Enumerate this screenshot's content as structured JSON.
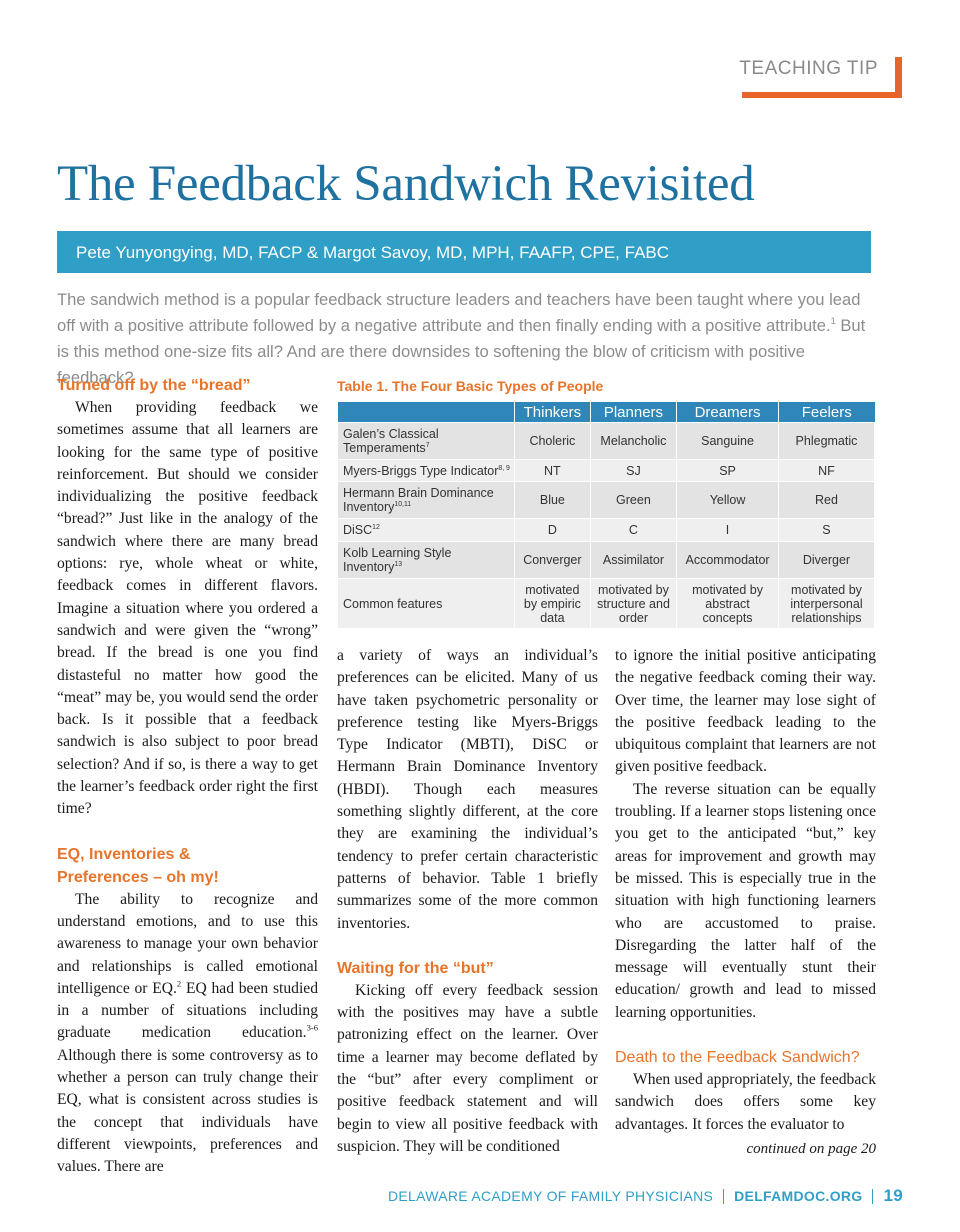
{
  "header": {
    "section": "TEACHING TIP"
  },
  "title": "The Feedback Sandwich Revisited",
  "authors": "Pete Yunyongying, MD, FACP & Margot Savoy, MD, MPH, FAAFP, CPE, FABC",
  "intro": [
    "The sandwich method is a popular feedback structure leaders and teachers have been taught where you lead off with a positive attribute followed by a negative attribute and then finally ending with a positive attribute.",
    "1",
    " But is this method one-size fits all? And are there downsides to softening the blow of criticism with positive feedback?"
  ],
  "left_column": {
    "heading1": "Turned off by the “bread”",
    "paragraph1": "When providing feedback we sometimes assume that all learners are looking for the same type of positive reinforcement. But should we consider individualizing the positive feedback “bread?” Just like in the analogy of the sandwich where there are many bread options: rye, whole wheat or white, feedback comes in different flavors. Imagine a situation where you ordered a sandwich and were given the “wrong” bread. If the bread is one you find distasteful no matter how good the “meat” may be, you would send the order back. Is it possible that a feedback sandwich is also subject to poor bread selection? And if so, is there a way to get the learner’s feedback order right the first time?",
    "heading2": [
      "EQ, Inventories &",
      "Preferences – oh my!"
    ],
    "paragraph2": [
      "The ability to recognize and understand emotions, and to use this awareness to manage your own behavior and relationships is called emotional intelligence or EQ.",
      "2",
      " EQ had been studied in a number of situations including graduate medication education.",
      "3-6",
      " Although there is some controversy as to whether a person can truly change their EQ, what is consistent across studies is the concept that individuals have different viewpoints, preferences and values. There are"
    ]
  },
  "table": {
    "caption": "Table 1. The Four Basic Types of People",
    "columns": [
      "Thinkers",
      "Planners",
      "Dreamers",
      "Feelers"
    ],
    "rows": [
      {
        "label": "Galen’s Classical Temperaments",
        "ref": "7",
        "cells": [
          "Choleric",
          "Melancholic",
          "Sanguine",
          "Phlegmatic"
        ]
      },
      {
        "label": "Myers-Briggs Type Indicator",
        "ref": "8, 9",
        "cells": [
          "NT",
          "SJ",
          "SP",
          "NF"
        ]
      },
      {
        "label": "Hermann Brain Dominance Inventory",
        "ref": "10,11",
        "cells": [
          "Blue",
          "Green",
          "Yellow",
          "Red"
        ]
      },
      {
        "label": "DiSC",
        "ref": "12",
        "cells": [
          "D",
          "C",
          "I",
          "S"
        ]
      },
      {
        "label": "Kolb Learning Style Inventory",
        "ref": "13",
        "cells": [
          "Converger",
          "Assimilator",
          "Accommodator",
          "Diverger"
        ]
      },
      {
        "label": "Common features",
        "cells": [
          "motivated by empiric data",
          "motivated by structure and order",
          "motivated by abstract concepts",
          "motivated by interpersonal relationships"
        ]
      }
    ]
  },
  "middle_column": {
    "paragraph1": "a variety of ways an individual’s preferences can be elicited. Many of us have taken psychometric personality or preference testing like Myers-Briggs Type Indicator (MBTI), DiSC or Hermann Brain Dominance Inventory (HBDI). Though each measures something slightly different, at the core they are examining the individual’s tendency to prefer certain characteristic patterns of behavior. Table 1 briefly summarizes some of the more common inventories.",
    "heading": "Waiting for the “but”",
    "paragraph2": "Kicking off every feedback session with the positives may have a subtle patronizing effect on the learner. Over time a learner may become deflated by the “but” after every compliment or positive feedback statement and will begin to view all positive feedback with suspicion. They will be conditioned"
  },
  "right_column": {
    "paragraph1": "to ignore the initial positive anticipating the negative feedback coming their way. Over time, the learner may lose sight of the positive feedback leading to the ubiquitous complaint that learners are not given positive feedback.",
    "paragraph2": "The reverse situation can be equally troubling. If a learner stops listening once you get to the anticipated “but,” key areas for improvement and growth may be missed. This is especially true in the situation with high functioning learners who are accustomed to praise. Disregarding the latter half of the message will eventually stunt their education/ growth and lead to missed learning opportunities.",
    "heading": "Death to the Feedback Sandwich?",
    "paragraph3": "When used appropriately, the feedback sandwich does offers some key advantages.  It forces the evaluator to",
    "continued": "continued on page 20"
  },
  "footer": {
    "organization": "DELAWARE ACADEMY OF FAMILY PHYSICIANS",
    "website": "DELFAMDOC.ORG",
    "page": "19"
  }
}
